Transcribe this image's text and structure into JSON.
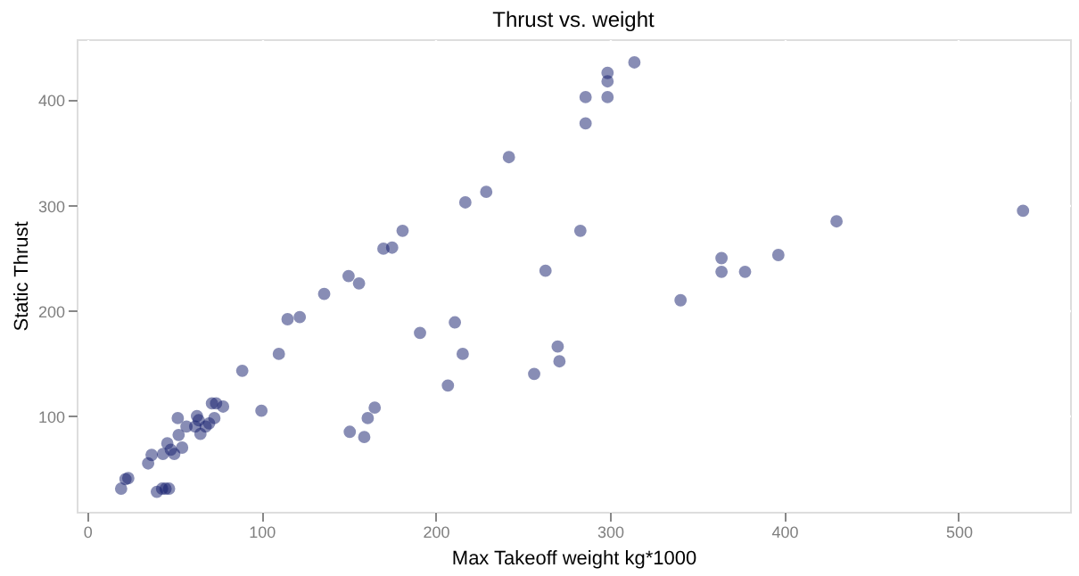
{
  "chart_data": {
    "type": "scatter",
    "title": "Thrust vs. weight",
    "xlabel": "Max Takeoff weight kg*1000",
    "ylabel": "Static Thrust",
    "xlim": [
      -6,
      564
    ],
    "ylim": [
      9,
      458
    ],
    "xticks": [
      0,
      100,
      200,
      300,
      400,
      500
    ],
    "yticks": [
      100,
      200,
      300,
      400
    ],
    "grid": true,
    "marker": "circle",
    "x": [
      19.5,
      22,
      23.6,
      35,
      37,
      40,
      43,
      45,
      47,
      43.5,
      46,
      48,
      50,
      52,
      52.5,
      54.5,
      57,
      63,
      64,
      62,
      65,
      68,
      70,
      71.6,
      74,
      73,
      78,
      89,
      100,
      110,
      115,
      122,
      136,
      150,
      156,
      150.7,
      159,
      161,
      165,
      170,
      175,
      181,
      191,
      207,
      211,
      215.5,
      217,
      229,
      242,
      256.5,
      263,
      270,
      271,
      283,
      286,
      286,
      298.6,
      298.6,
      298.6,
      314,
      340.5,
      364,
      364,
      377.5,
      396.6,
      430,
      537
    ],
    "series": [
      {
        "color": "#111b6b",
        "values": [
          31,
          40,
          41,
          55,
          63,
          28,
          31,
          31,
          31,
          64,
          74,
          68,
          64,
          98,
          82,
          70,
          90,
          100,
          96,
          90,
          83,
          90,
          93,
          112,
          112,
          98,
          109,
          143,
          105,
          159,
          192,
          194,
          216,
          233,
          226,
          85,
          80,
          98,
          108,
          259,
          260,
          276,
          179,
          129,
          189,
          159,
          303,
          313,
          346,
          140,
          238,
          166,
          152,
          276,
          378,
          403,
          403,
          418,
          426,
          436,
          210,
          250,
          237,
          237,
          253,
          285,
          295
        ]
      }
    ]
  }
}
